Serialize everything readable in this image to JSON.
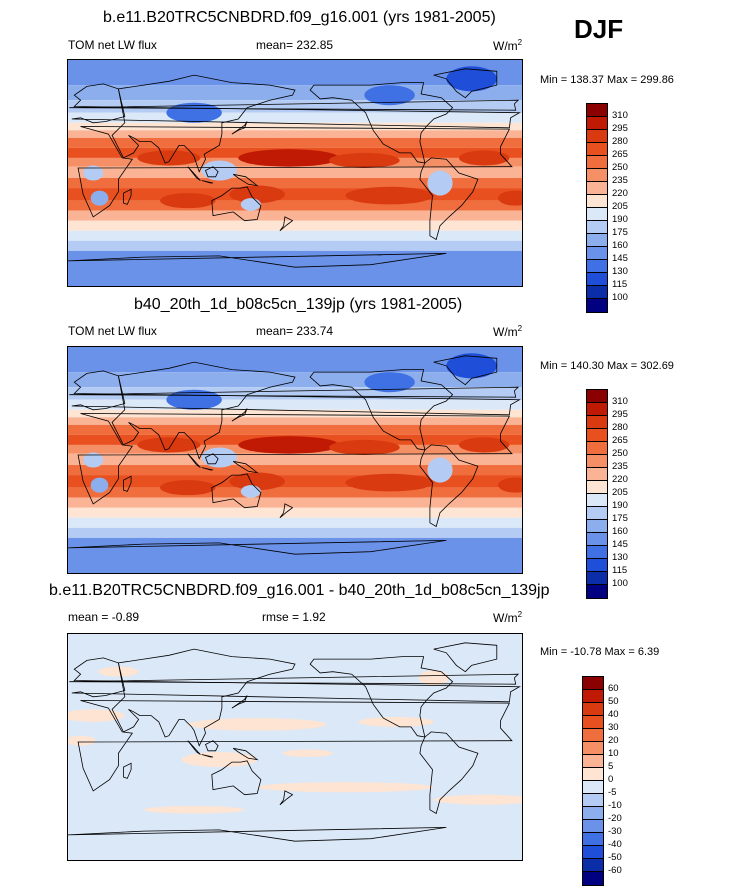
{
  "season": "DJF",
  "panels": [
    {
      "title": "b.e11.B20TRC5CNBDRD.f09_g16.001 (yrs 1981-2005)",
      "left": "TOM net LW flux",
      "center": "mean= 232.85",
      "units": "W/m",
      "units_sup": "2",
      "minmax": "Min = 138.37 Max = 299.86"
    },
    {
      "title": "b40_20th_1d_b08c5cn_139jp (yrs 1981-2005)",
      "left": "TOM net LW flux",
      "center": "mean= 233.74",
      "units": "W/m",
      "units_sup": "2",
      "minmax": "Min = 140.30 Max = 302.69"
    },
    {
      "title": "b.e11.B20TRC5CNBDRD.f09_g16.001 - b40_20th_1d_b08c5cn_139jp",
      "left": "mean =  -0.89",
      "center": "rmse =   1.92",
      "units": "W/m",
      "units_sup": "2",
      "minmax": "Min = -10.78 Max =   6.39"
    }
  ],
  "chart_data": [
    {
      "type": "heatmap",
      "title": "b.e11.B20TRC5CNBDRD.f09_g16.001 (yrs 1981-2005)",
      "variable": "TOM net LW flux",
      "mean": 232.85,
      "min": 138.37,
      "max": 299.86,
      "units": "W/m2",
      "levels": [
        "310",
        "295",
        "280",
        "265",
        "250",
        "235",
        "220",
        "205",
        "190",
        "175",
        "160",
        "145",
        "130",
        "115",
        "100"
      ],
      "colors": [
        "#8b0000",
        "#c01a05",
        "#d93a10",
        "#e8501f",
        "#f06e3e",
        "#f58f66",
        "#fab394",
        "#fde4d3",
        "#dbe8f8",
        "#b4ccf3",
        "#8daeec",
        "#6a92e8",
        "#3f71e5",
        "#1f4fd8",
        "#0b2ea8",
        "#000080"
      ]
    },
    {
      "type": "heatmap",
      "title": "b40_20th_1d_b08c5cn_139jp (yrs 1981-2005)",
      "variable": "TOM net LW flux",
      "mean": 233.74,
      "min": 140.3,
      "max": 302.69,
      "units": "W/m2",
      "levels": [
        "310",
        "295",
        "280",
        "265",
        "250",
        "235",
        "220",
        "205",
        "190",
        "175",
        "160",
        "145",
        "130",
        "115",
        "100"
      ],
      "colors": [
        "#8b0000",
        "#c01a05",
        "#d93a10",
        "#e8501f",
        "#f06e3e",
        "#f58f66",
        "#fab394",
        "#fde4d3",
        "#dbe8f8",
        "#b4ccf3",
        "#8daeec",
        "#6a92e8",
        "#3f71e5",
        "#1f4fd8",
        "#0b2ea8",
        "#000080"
      ]
    },
    {
      "type": "heatmap",
      "title": "b.e11.B20TRC5CNBDRD.f09_g16.001 - b40_20th_1d_b08c5cn_139jp",
      "mean": -0.89,
      "rmse": 1.92,
      "min": -10.78,
      "max": 6.39,
      "units": "W/m2",
      "levels": [
        "60",
        "50",
        "40",
        "30",
        "20",
        "10",
        "5",
        "0",
        "-5",
        "-10",
        "-20",
        "-30",
        "-40",
        "-50",
        "-60"
      ],
      "colors": [
        "#8b0000",
        "#c01a05",
        "#d93a10",
        "#e8501f",
        "#f06e3e",
        "#f58f66",
        "#fab394",
        "#fde4d3",
        "#dbe8f8",
        "#b4ccf3",
        "#8daeec",
        "#6a92e8",
        "#3f71e5",
        "#1f4fd8",
        "#0b2ea8",
        "#000080"
      ]
    }
  ]
}
